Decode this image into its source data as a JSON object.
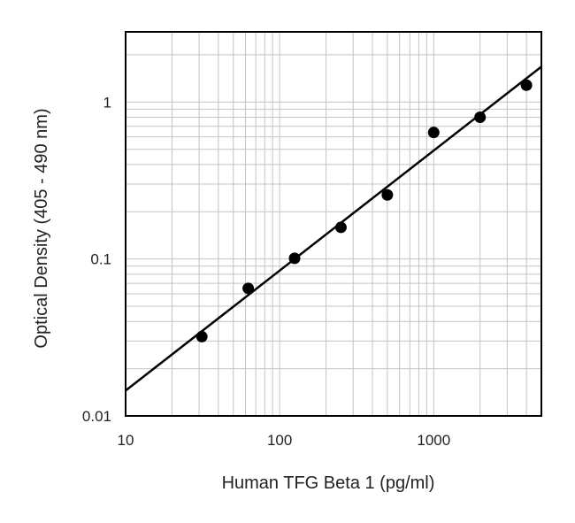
{
  "chart_data": {
    "type": "scatter",
    "title": "",
    "xlabel": "Human TFG Beta 1 (pg/ml)",
    "ylabel": "Optical Density (405 - 490 nm)",
    "x_scale": "log",
    "y_scale": "log",
    "xlim": [
      10,
      5000
    ],
    "ylim": [
      0.01,
      2.8
    ],
    "x_ticks": [
      10,
      100,
      1000
    ],
    "x_tick_labels": [
      "10",
      "100",
      "1000"
    ],
    "y_ticks": [
      0.01,
      0.1,
      1
    ],
    "y_tick_labels": [
      "0.01",
      "0.1",
      "1"
    ],
    "grid": true,
    "series": [
      {
        "type": "scatter",
        "x": [
          31.25,
          62.5,
          125,
          250,
          500,
          1000,
          2000,
          4000
        ],
        "y": [
          0.032,
          0.065,
          0.101,
          0.159,
          0.256,
          0.64,
          0.8,
          1.28
        ]
      },
      {
        "type": "line",
        "x": [
          10,
          5000
        ],
        "y": [
          0.0145,
          1.68
        ]
      }
    ],
    "colors": {
      "marker": "#000000",
      "line": "#000000",
      "grid": "#c4c4c4",
      "frame": "#000000"
    }
  }
}
